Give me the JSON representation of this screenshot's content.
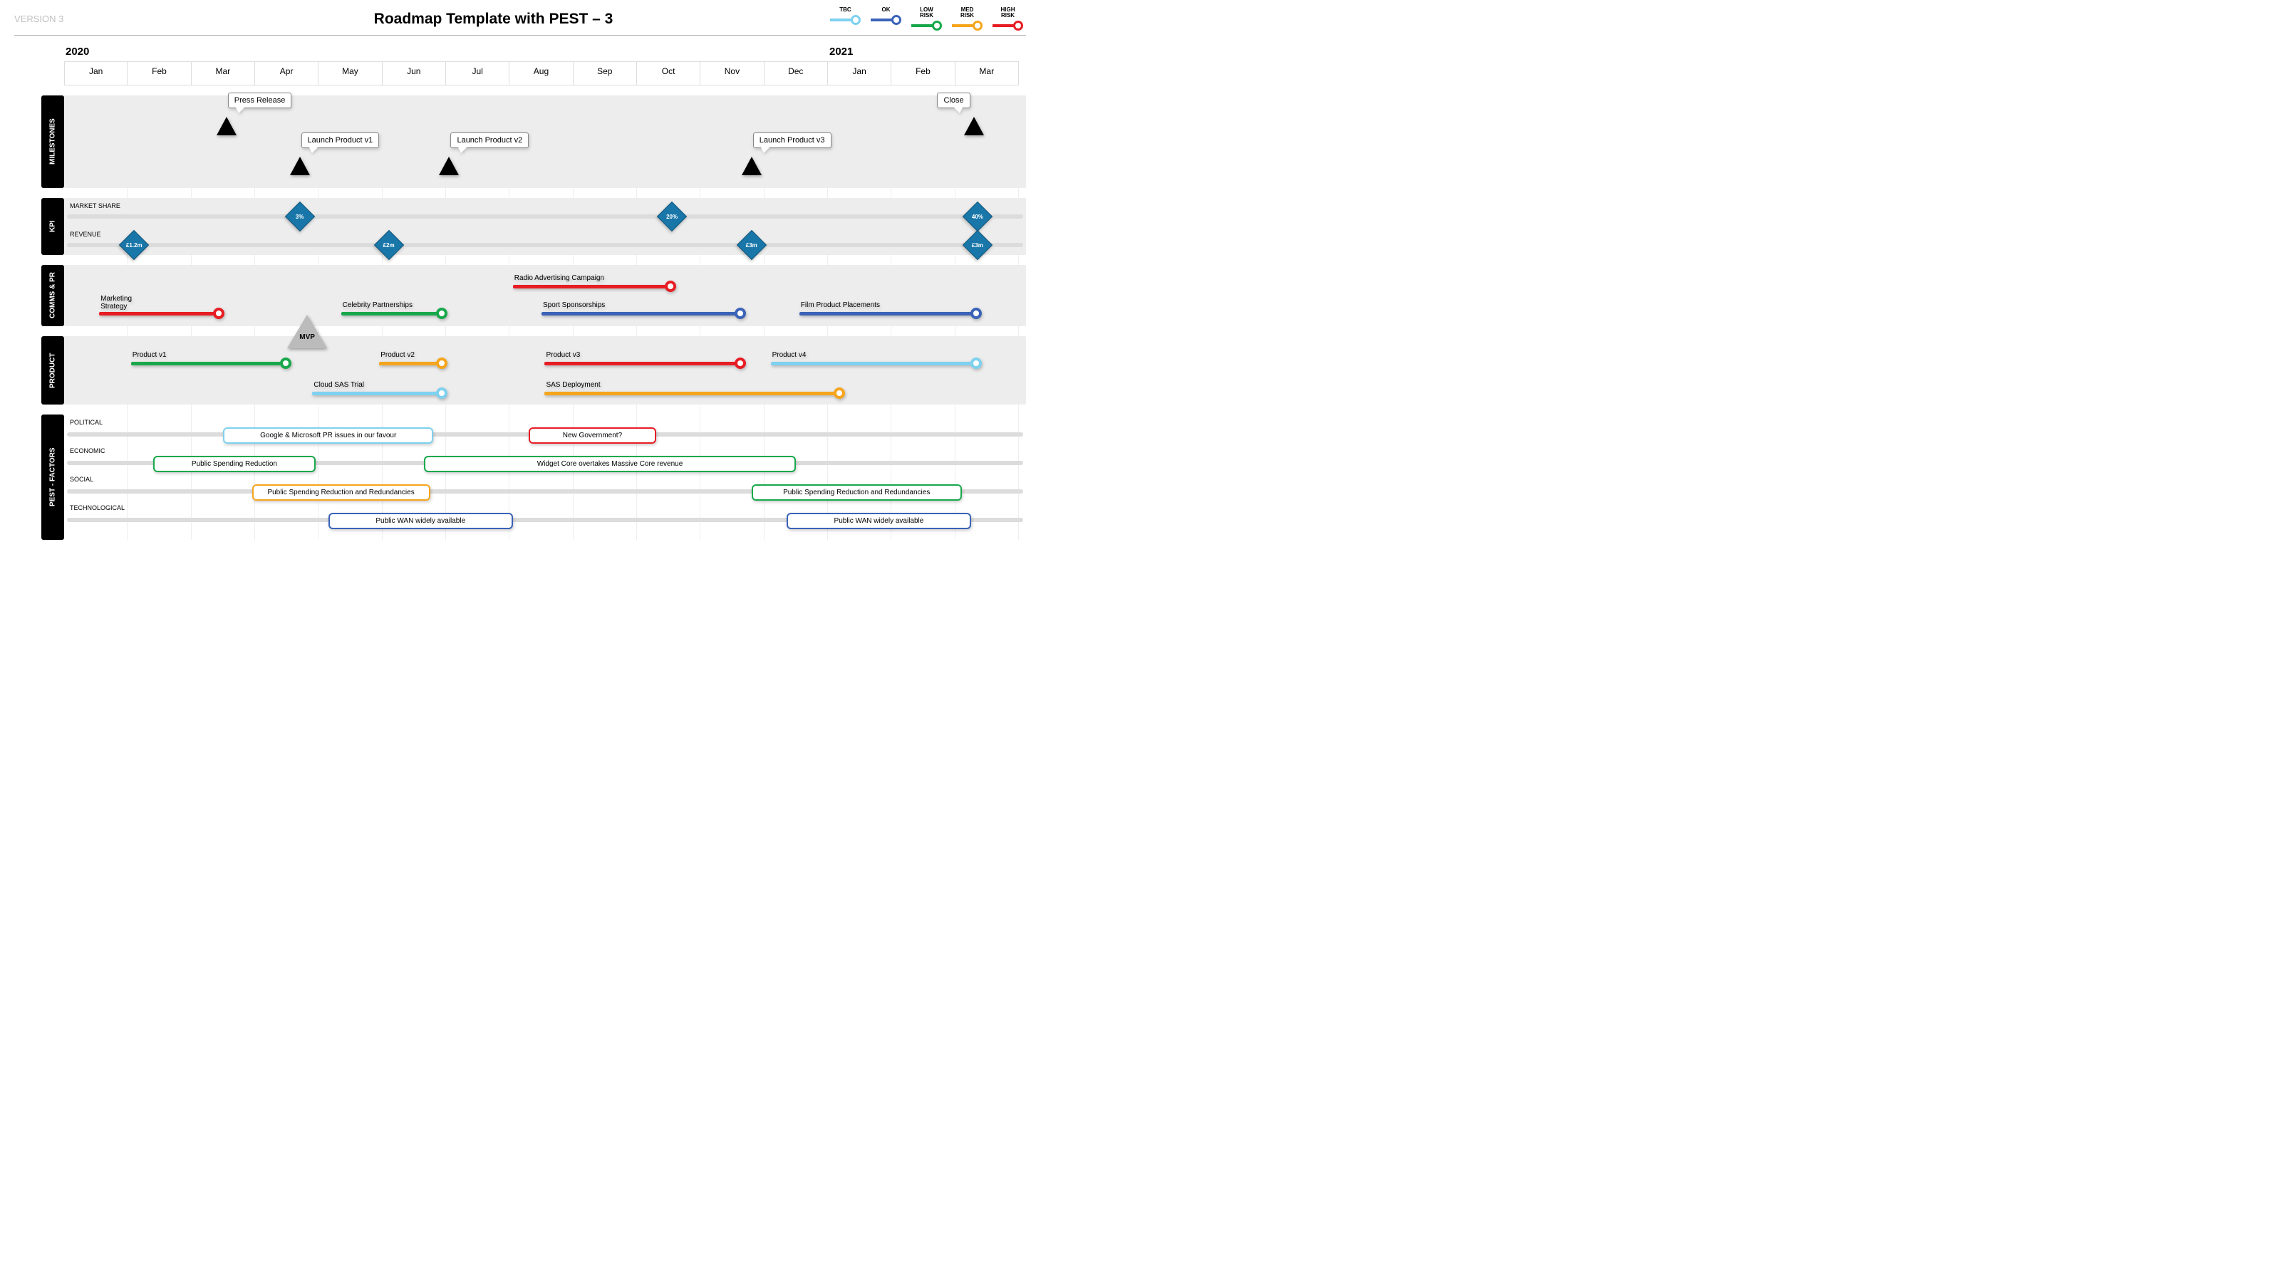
{
  "header": {
    "version": "VERSION 3",
    "title": "Roadmap Template with PEST – 3"
  },
  "colors": {
    "tbc": "#7ed1ef",
    "ok": "#3a63b8",
    "low": "#18a84b",
    "med": "#f5a51d",
    "high": "#e71d24",
    "diamond": "#1976a8",
    "lane_bg": "#ededed",
    "track": "#dcdcdc"
  },
  "legend": [
    {
      "label": "TBC",
      "colorKey": "tbc"
    },
    {
      "label": "OK",
      "colorKey": "ok"
    },
    {
      "label": "LOW\nRISK",
      "colorKey": "low"
    },
    {
      "label": "MED\nRISK",
      "colorKey": "med"
    },
    {
      "label": "HIGH\nRISK",
      "colorKey": "high"
    }
  ],
  "timeline": {
    "months": [
      "Jan",
      "Feb",
      "Mar",
      "Apr",
      "May",
      "Jun",
      "Jul",
      "Aug",
      "Sep",
      "Oct",
      "Nov",
      "Dec",
      "Jan",
      "Feb",
      "Mar"
    ],
    "years": [
      {
        "label": "2020",
        "span": 12
      },
      {
        "label": "2021",
        "span": 3
      }
    ],
    "col_count": 15
  },
  "lanes": [
    {
      "id": "milestones",
      "label": "MILESTONES",
      "height": 130
    },
    {
      "id": "kpi",
      "label": "KPI",
      "height": 80
    },
    {
      "id": "comms",
      "label": "COMMS & PR",
      "height": 86
    },
    {
      "id": "product",
      "label": "PRODUCT",
      "height": 96
    },
    {
      "id": "pest",
      "label": "PEST - FACTORS",
      "height": 176
    }
  ],
  "milestones": [
    {
      "label": "Press Release",
      "month": 2.55,
      "row": 0
    },
    {
      "label": "Launch Product v1",
      "month": 3.7,
      "row": 1
    },
    {
      "label": "Launch Product v2",
      "month": 6.05,
      "row": 1
    },
    {
      "label": "Launch Product v3",
      "month": 10.8,
      "row": 1
    },
    {
      "label": "Close",
      "month": 14.3,
      "row": 0
    }
  ],
  "kpi": {
    "tracks": [
      {
        "label": "MARKET SHARE",
        "diamonds": [
          {
            "text": "3%",
            "month": 3.7
          },
          {
            "text": "20%",
            "month": 9.55
          },
          {
            "text": "40%",
            "month": 14.35
          }
        ]
      },
      {
        "label": "REVENUE",
        "diamonds": [
          {
            "text": "£1.2m",
            "month": 1.1
          },
          {
            "text": "£2m",
            "month": 5.1
          },
          {
            "text": "£3m",
            "month": 10.8
          },
          {
            "text": "£3m",
            "month": 14.35
          }
        ]
      }
    ]
  },
  "comms": {
    "bars": [
      {
        "label": "Radio Advertising Campaign",
        "start": 7.05,
        "end": 9.55,
        "row": 0,
        "colorKey": "high"
      },
      {
        "label": "Marketing\nStrategy",
        "start": 0.55,
        "end": 2.45,
        "row": 1,
        "colorKey": "high"
      },
      {
        "label": "Celebrity Partnerships",
        "start": 4.35,
        "end": 5.95,
        "row": 1,
        "colorKey": "low"
      },
      {
        "label": "Sport Sponsorships",
        "start": 7.5,
        "end": 10.65,
        "row": 1,
        "colorKey": "ok"
      },
      {
        "label": "Film Product Placements",
        "start": 11.55,
        "end": 14.35,
        "row": 1,
        "colorKey": "ok"
      }
    ]
  },
  "product": {
    "mvp": {
      "label": "MVP",
      "month": 3.55
    },
    "bars": [
      {
        "label": "Product v1",
        "start": 1.05,
        "end": 3.5,
        "row": 0,
        "colorKey": "low"
      },
      {
        "label": "Product v2",
        "start": 4.95,
        "end": 5.95,
        "row": 0,
        "colorKey": "med"
      },
      {
        "label": "Product  v3",
        "start": 7.55,
        "end": 10.65,
        "row": 0,
        "colorKey": "high"
      },
      {
        "label": "Product  v4",
        "start": 11.1,
        "end": 14.35,
        "row": 0,
        "colorKey": "tbc"
      },
      {
        "label": "Cloud SAS Trial",
        "start": 3.9,
        "end": 5.95,
        "row": 1,
        "colorKey": "tbc"
      },
      {
        "label": "SAS Deployment",
        "start": 7.55,
        "end": 12.2,
        "row": 1,
        "colorKey": "med"
      }
    ]
  },
  "pest": {
    "tracks": [
      "POLITICAL",
      "ECONOMIC",
      "SOCIAL",
      "TECHNOLOGICAL"
    ],
    "factors": [
      {
        "label": "Google & Microsoft PR issues in our favour",
        "start": 2.5,
        "end": 5.8,
        "row": 0,
        "colorKey": "tbc"
      },
      {
        "label": "New Government?",
        "start": 7.3,
        "end": 9.3,
        "row": 0,
        "colorKey": "high"
      },
      {
        "label": "Public Spending Reduction",
        "start": 1.4,
        "end": 3.95,
        "row": 1,
        "colorKey": "low"
      },
      {
        "label": "Widget Core overtakes Massive Core revenue",
        "start": 5.65,
        "end": 11.5,
        "row": 1,
        "colorKey": "low"
      },
      {
        "label": "Public Spending Reduction and Redundancies",
        "start": 2.95,
        "end": 5.75,
        "row": 2,
        "colorKey": "med"
      },
      {
        "label": "Public Spending Reduction and Redundancies",
        "start": 10.8,
        "end": 14.1,
        "row": 2,
        "colorKey": "low"
      },
      {
        "label": "Public WAN widely available",
        "start": 4.15,
        "end": 7.05,
        "row": 3,
        "colorKey": "ok"
      },
      {
        "label": "Public WAN widely available",
        "start": 11.35,
        "end": 14.25,
        "row": 3,
        "colorKey": "ok"
      }
    ]
  }
}
